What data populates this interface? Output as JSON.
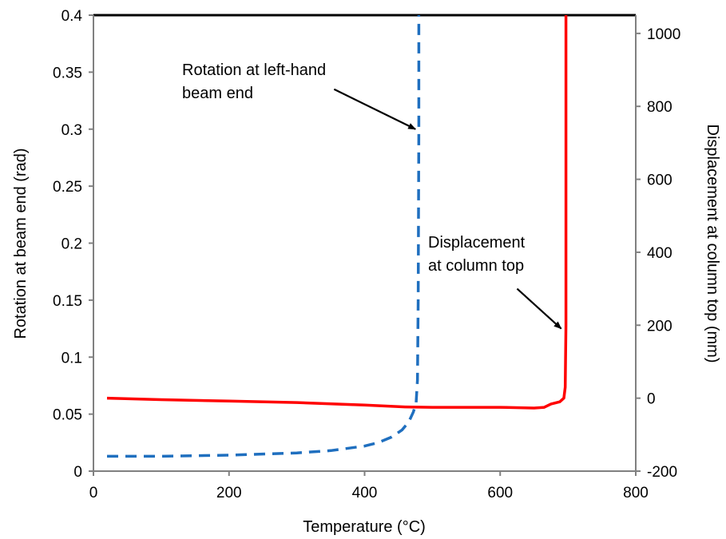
{
  "chart_data": {
    "type": "line",
    "title": "",
    "xlabel": "Temperature (°C)",
    "ylabel": "Rotation at beam end (rad)",
    "y2label": "Displacement at column top (mm)",
    "xlim": [
      0,
      800
    ],
    "ylim": [
      0,
      0.4
    ],
    "y2lim": [
      -200,
      1050
    ],
    "x_ticks": [
      "0",
      "200",
      "400",
      "600",
      "800"
    ],
    "y_ticks": [
      "0",
      "0.05",
      "0.1",
      "0.15",
      "0.2",
      "0.25",
      "0.3",
      "0.35",
      "0.4"
    ],
    "y2_ticks": [
      "-200",
      "0",
      "200",
      "400",
      "600",
      "800",
      "1000"
    ],
    "grid": false,
    "series": [
      {
        "name": "Rotation at left-hand beam end",
        "axis": "left",
        "style": "dashed",
        "color": "#1f6fbf",
        "points": [
          [
            20,
            0.013
          ],
          [
            100,
            0.013
          ],
          [
            200,
            0.014
          ],
          [
            300,
            0.016
          ],
          [
            350,
            0.018
          ],
          [
            400,
            0.022
          ],
          [
            420,
            0.025
          ],
          [
            440,
            0.03
          ],
          [
            455,
            0.036
          ],
          [
            465,
            0.043
          ],
          [
            472,
            0.052
          ],
          [
            476,
            0.06
          ],
          [
            478,
            0.08
          ],
          [
            479,
            0.15
          ],
          [
            480,
            0.3
          ],
          [
            480,
            0.4
          ]
        ]
      },
      {
        "name": "Displacement at column top",
        "axis": "right",
        "style": "solid",
        "color": "#ff0000",
        "points": [
          [
            20,
            0
          ],
          [
            100,
            -4
          ],
          [
            200,
            -8
          ],
          [
            300,
            -12
          ],
          [
            400,
            -19
          ],
          [
            460,
            -24
          ],
          [
            500,
            -25
          ],
          [
            600,
            -25
          ],
          [
            650,
            -27
          ],
          [
            665,
            -25
          ],
          [
            675,
            -16
          ],
          [
            688,
            -10
          ],
          [
            694,
            0
          ],
          [
            696,
            30
          ],
          [
            697,
            200
          ],
          [
            697,
            500
          ],
          [
            697,
            1050
          ]
        ]
      }
    ],
    "annotations": [
      {
        "lines": [
          "Rotation at left-hand",
          "beam end"
        ],
        "arrow_from": [
          355,
          0.335
        ],
        "arrow_to": [
          475,
          0.3
        ]
      },
      {
        "lines": [
          "Displacement",
          "at column top"
        ],
        "arrow_from": [
          625,
          0.16
        ],
        "arrow_to": [
          690,
          0.125
        ]
      }
    ]
  }
}
